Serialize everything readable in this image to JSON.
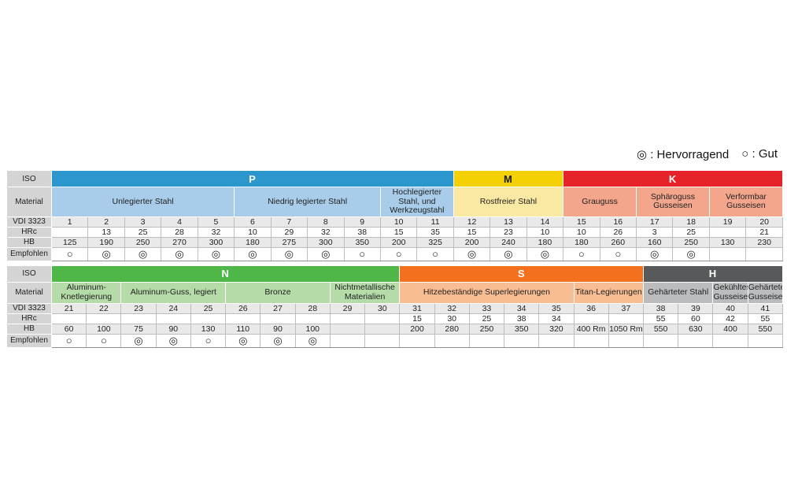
{
  "legend": {
    "excellent": "◎ : Hervorragend",
    "good": "○ : Gut"
  },
  "symbols": {
    "excellent": "◎",
    "good": "○"
  },
  "row_labels": {
    "iso": "ISO",
    "material": "Material",
    "vdi": "VDI 3323",
    "hrc": "HRc",
    "hb": "HB",
    "emp": "Empfohlen"
  },
  "tables": [
    {
      "name": "top",
      "groups": [
        {
          "iso": "P",
          "header_bg": "#2B97CC",
          "header_fg": "#ffffff",
          "material_bg": "#A8CCEA",
          "materials": [
            {
              "name": "Unlegierter Stahl",
              "span": 5
            },
            {
              "name": "Niedrig legierter Stahl",
              "span": 4
            },
            {
              "name": "Hochlegierter Stahl, und Werkzeugstahl",
              "span": 2
            }
          ]
        },
        {
          "iso": "M",
          "header_bg": "#F5D104",
          "header_fg": "#1a1a1a",
          "material_bg": "#FAE9A2",
          "materials": [
            {
              "name": "Rostfreier Stahl",
              "span": 3
            }
          ]
        },
        {
          "iso": "K",
          "header_bg": "#E62328",
          "header_fg": "#ffffff",
          "material_bg": "#F3A68B",
          "materials": [
            {
              "name": "Grauguss",
              "span": 2
            },
            {
              "name": "Sphäroguss Gusseisen",
              "span": 2
            },
            {
              "name": "Verformbar Gusseisen",
              "span": 2
            }
          ]
        }
      ],
      "columns": [
        {
          "vdi": "1",
          "hrc": "",
          "hb": "125",
          "emp": "good"
        },
        {
          "vdi": "2",
          "hrc": "13",
          "hb": "190",
          "emp": "excellent"
        },
        {
          "vdi": "3",
          "hrc": "25",
          "hb": "250",
          "emp": "excellent"
        },
        {
          "vdi": "4",
          "hrc": "28",
          "hb": "270",
          "emp": "excellent"
        },
        {
          "vdi": "5",
          "hrc": "32",
          "hb": "300",
          "emp": "excellent"
        },
        {
          "vdi": "6",
          "hrc": "10",
          "hb": "180",
          "emp": "excellent"
        },
        {
          "vdi": "7",
          "hrc": "29",
          "hb": "275",
          "emp": "excellent"
        },
        {
          "vdi": "8",
          "hrc": "32",
          "hb": "300",
          "emp": "excellent"
        },
        {
          "vdi": "9",
          "hrc": "38",
          "hb": "350",
          "emp": "good"
        },
        {
          "vdi": "10",
          "hrc": "15",
          "hb": "200",
          "emp": "good"
        },
        {
          "vdi": "11",
          "hrc": "35",
          "hb": "325",
          "emp": "good"
        },
        {
          "vdi": "12",
          "hrc": "15",
          "hb": "200",
          "emp": "excellent"
        },
        {
          "vdi": "13",
          "hrc": "23",
          "hb": "240",
          "emp": "excellent"
        },
        {
          "vdi": "14",
          "hrc": "10",
          "hb": "180",
          "emp": "excellent"
        },
        {
          "vdi": "15",
          "hrc": "10",
          "hb": "180",
          "emp": "good"
        },
        {
          "vdi": "16",
          "hrc": "26",
          "hb": "260",
          "emp": "good"
        },
        {
          "vdi": "17",
          "hrc": "3",
          "hb": "160",
          "emp": "excellent"
        },
        {
          "vdi": "18",
          "hrc": "25",
          "hb": "250",
          "emp": "excellent"
        },
        {
          "vdi": "19",
          "hrc": "",
          "hb": "130",
          "emp": ""
        },
        {
          "vdi": "20",
          "hrc": "21",
          "hb": "230",
          "emp": ""
        }
      ]
    },
    {
      "name": "bottom",
      "groups": [
        {
          "iso": "N",
          "header_bg": "#4FB648",
          "header_fg": "#ffffff",
          "material_bg": "#B4DBA8",
          "materials": [
            {
              "name": "Aluminum-Knetlegierung",
              "span": 2
            },
            {
              "name": "Aluminum-Guss, legiert",
              "span": 3
            },
            {
              "name": "Bronze",
              "span": 3
            },
            {
              "name": "Nichtmetallische Materialien",
              "span": 2
            }
          ]
        },
        {
          "iso": "S",
          "header_bg": "#F2701E",
          "header_fg": "#ffffff",
          "material_bg": "#F8BD92",
          "materials": [
            {
              "name": "Hitzebeständige Superlegierungen",
              "span": 5
            },
            {
              "name": "Titan-Legierungen",
              "span": 2
            }
          ]
        },
        {
          "iso": "H",
          "header_bg": "#58595B",
          "header_fg": "#ffffff",
          "material_bg": "#BBBCBE",
          "materials": [
            {
              "name": "Gehärteter Stahl",
              "span": 2
            },
            {
              "name": "Gekühltes Gusseisen",
              "span": 1
            },
            {
              "name": "Gehärtetes Gusseisen",
              "span": 1
            }
          ]
        }
      ],
      "columns": [
        {
          "vdi": "21",
          "hrc": "",
          "hb": "60",
          "emp": "good"
        },
        {
          "vdi": "22",
          "hrc": "",
          "hb": "100",
          "emp": "good"
        },
        {
          "vdi": "23",
          "hrc": "",
          "hb": "75",
          "emp": "excellent"
        },
        {
          "vdi": "24",
          "hrc": "",
          "hb": "90",
          "emp": "excellent"
        },
        {
          "vdi": "25",
          "hrc": "",
          "hb": "130",
          "emp": "good"
        },
        {
          "vdi": "26",
          "hrc": "",
          "hb": "110",
          "emp": "excellent"
        },
        {
          "vdi": "27",
          "hrc": "",
          "hb": "90",
          "emp": "excellent"
        },
        {
          "vdi": "28",
          "hrc": "",
          "hb": "100",
          "emp": "excellent"
        },
        {
          "vdi": "29",
          "hrc": "",
          "hb": "",
          "emp": ""
        },
        {
          "vdi": "30",
          "hrc": "",
          "hb": "",
          "emp": ""
        },
        {
          "vdi": "31",
          "hrc": "15",
          "hb": "200",
          "emp": ""
        },
        {
          "vdi": "32",
          "hrc": "30",
          "hb": "280",
          "emp": ""
        },
        {
          "vdi": "33",
          "hrc": "25",
          "hb": "250",
          "emp": ""
        },
        {
          "vdi": "34",
          "hrc": "38",
          "hb": "350",
          "emp": ""
        },
        {
          "vdi": "35",
          "hrc": "34",
          "hb": "320",
          "emp": ""
        },
        {
          "vdi": "36",
          "hrc": "",
          "hb": "400 Rm",
          "emp": ""
        },
        {
          "vdi": "37",
          "hrc": "",
          "hb": "1050 Rm",
          "emp": ""
        },
        {
          "vdi": "38",
          "hrc": "55",
          "hb": "550",
          "emp": ""
        },
        {
          "vdi": "39",
          "hrc": "60",
          "hb": "630",
          "emp": ""
        },
        {
          "vdi": "40",
          "hrc": "42",
          "hb": "400",
          "emp": ""
        },
        {
          "vdi": "41",
          "hrc": "55",
          "hb": "550",
          "emp": ""
        }
      ]
    }
  ]
}
